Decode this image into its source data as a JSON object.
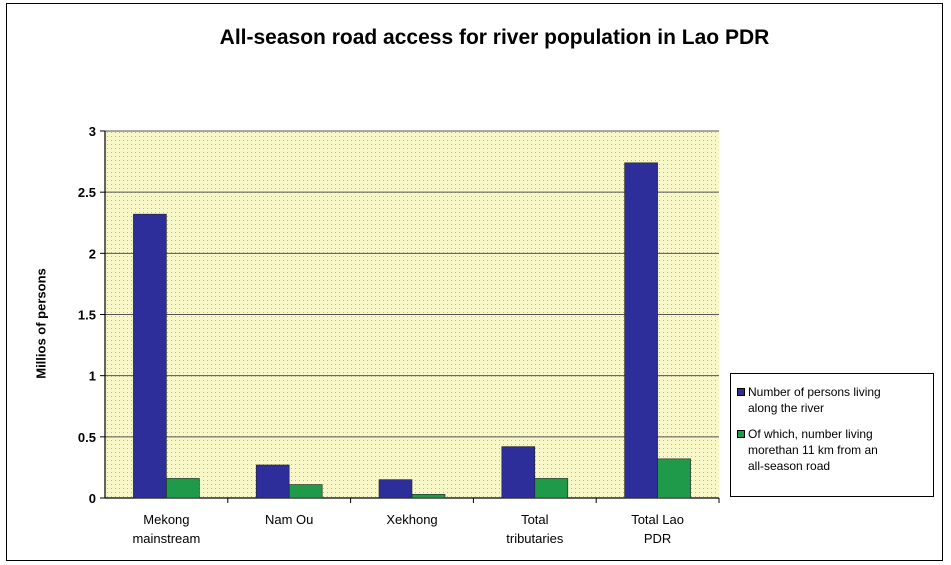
{
  "chart_data": {
    "type": "bar",
    "title": "All-season road access for river population in Lao PDR",
    "xlabel": "",
    "ylabel": "Millios of persons",
    "ylim": [
      0,
      3
    ],
    "yticks": [
      "0",
      "0.5",
      "1",
      "1.5",
      "2",
      "2.5",
      "3"
    ],
    "categories": [
      [
        "Mekong",
        "mainstream"
      ],
      [
        "Nam Ou"
      ],
      [
        "Xekhong"
      ],
      [
        "Total",
        "tributaries"
      ],
      [
        "Total Lao",
        "PDR"
      ]
    ],
    "series": [
      {
        "name": "Number of persons living along the river",
        "legend_lines": [
          "Number of persons living",
          "along the river"
        ],
        "color": "#2e2e9a",
        "values": [
          2.32,
          0.27,
          0.15,
          0.42,
          2.74
        ]
      },
      {
        "name": "Of which, number living morethan 11 km from an all-season road",
        "legend_lines": [
          "Of which, number living",
          "morethan 11 km from an",
          "all-season road"
        ],
        "color": "#1e9a4a",
        "values": [
          0.16,
          0.11,
          0.03,
          0.16,
          0.32
        ]
      }
    ],
    "grid": true,
    "legend_position": "right",
    "colors": {
      "plot_bg": "#f7f7c8",
      "grid": "#555555"
    }
  }
}
